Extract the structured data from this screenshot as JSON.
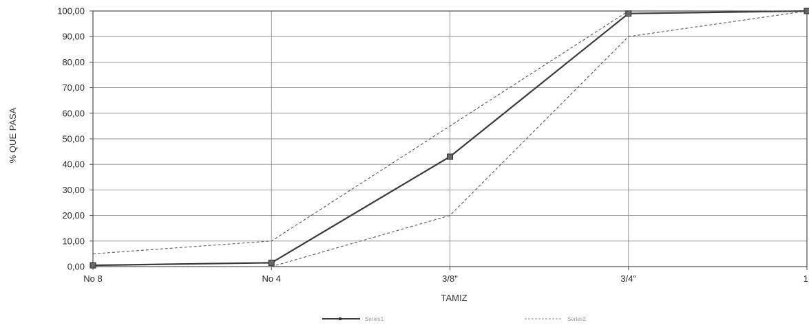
{
  "chart_data": {
    "type": "line",
    "title": "",
    "xlabel": "TAMIZ",
    "ylabel": "% QUE PASA",
    "categories": [
      "No 8",
      "No 4",
      "3/8\"",
      "3/4\"",
      "1"
    ],
    "ylim": [
      0,
      100
    ],
    "y_ticks": [
      "0,00",
      "10,00",
      "20,00",
      "30,00",
      "40,00",
      "50,00",
      "60,00",
      "70,00",
      "80,00",
      "90,00",
      "100,00"
    ],
    "grid": true,
    "legend_position": "bottom-center",
    "series": [
      {
        "name": "Series1",
        "values": [
          0.5,
          1.5,
          43,
          99,
          100
        ],
        "style": "solid",
        "markers": true,
        "color": "#3a3a3a"
      },
      {
        "name": "Series2",
        "values": [
          5,
          10,
          55,
          100,
          100
        ],
        "style": "dashed",
        "markers": false,
        "color": "#555555"
      },
      {
        "name": "",
        "values": [
          0,
          0,
          20,
          90,
          100
        ],
        "style": "dashed",
        "markers": false,
        "color": "#555555"
      }
    ]
  }
}
